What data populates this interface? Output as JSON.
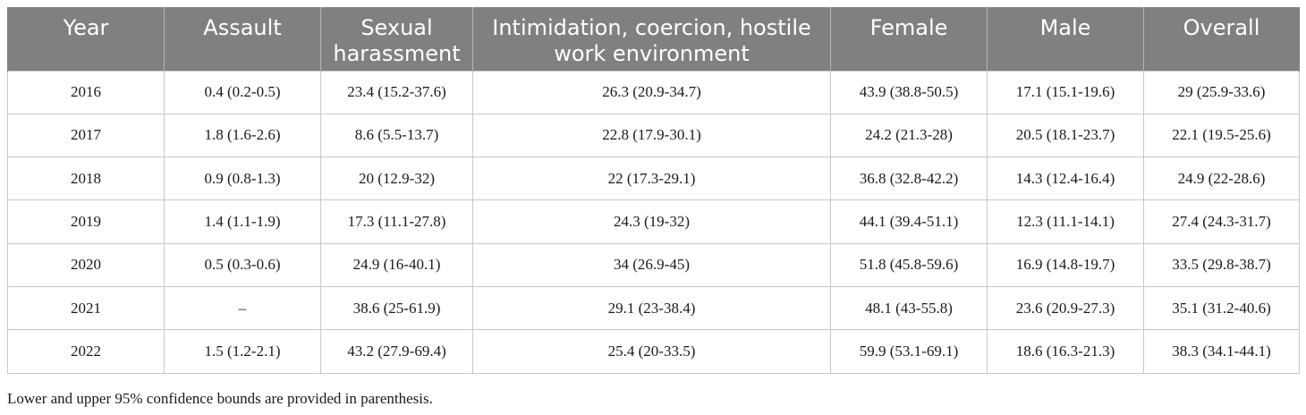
{
  "table": {
    "headers": [
      "Year",
      "Assault",
      "Sexual harassment",
      "Intimidation, coercion, hostile work environment",
      "Female",
      "Male",
      "Overall"
    ],
    "rows": [
      [
        "2016",
        "0.4 (0.2-0.5)",
        "23.4 (15.2-37.6)",
        "26.3 (20.9-34.7)",
        "43.9 (38.8-50.5)",
        "17.1 (15.1-19.6)",
        "29 (25.9-33.6)"
      ],
      [
        "2017",
        "1.8 (1.6-2.6)",
        "8.6 (5.5-13.7)",
        "22.8 (17.9-30.1)",
        "24.2 (21.3-28)",
        "20.5 (18.1-23.7)",
        "22.1 (19.5-25.6)"
      ],
      [
        "2018",
        "0.9 (0.8-1.3)",
        "20 (12.9-32)",
        "22 (17.3-29.1)",
        "36.8 (32.8-42.2)",
        "14.3 (12.4-16.4)",
        "24.9 (22-28.6)"
      ],
      [
        "2019",
        "1.4 (1.1-1.9)",
        "17.3 (11.1-27.8)",
        "24.3 (19-32)",
        "44.1 (39.4-51.1)",
        "12.3 (11.1-14.1)",
        "27.4 (24.3-31.7)"
      ],
      [
        "2020",
        "0.5 (0.3-0.6)",
        "24.9 (16-40.1)",
        "34 (26.9-45)",
        "51.8 (45.8-59.6)",
        "16.9 (14.8-19.7)",
        "33.5 (29.8-38.7)"
      ],
      [
        "2021",
        "–",
        "38.6 (25-61.9)",
        "29.1 (23-38.4)",
        "48.1 (43-55.8)",
        "23.6 (20.9-27.3)",
        "35.1 (31.2-40.6)"
      ],
      [
        "2022",
        "1.5 (1.2-2.1)",
        "43.2 (27.9-69.4)",
        "25.4 (20-33.5)",
        "59.9 (53.1-69.1)",
        "18.6 (16.3-21.3)",
        "38.3 (34.1-44.1)"
      ]
    ]
  },
  "footnote": "Lower and upper 95% confidence bounds are provided in parenthesis."
}
